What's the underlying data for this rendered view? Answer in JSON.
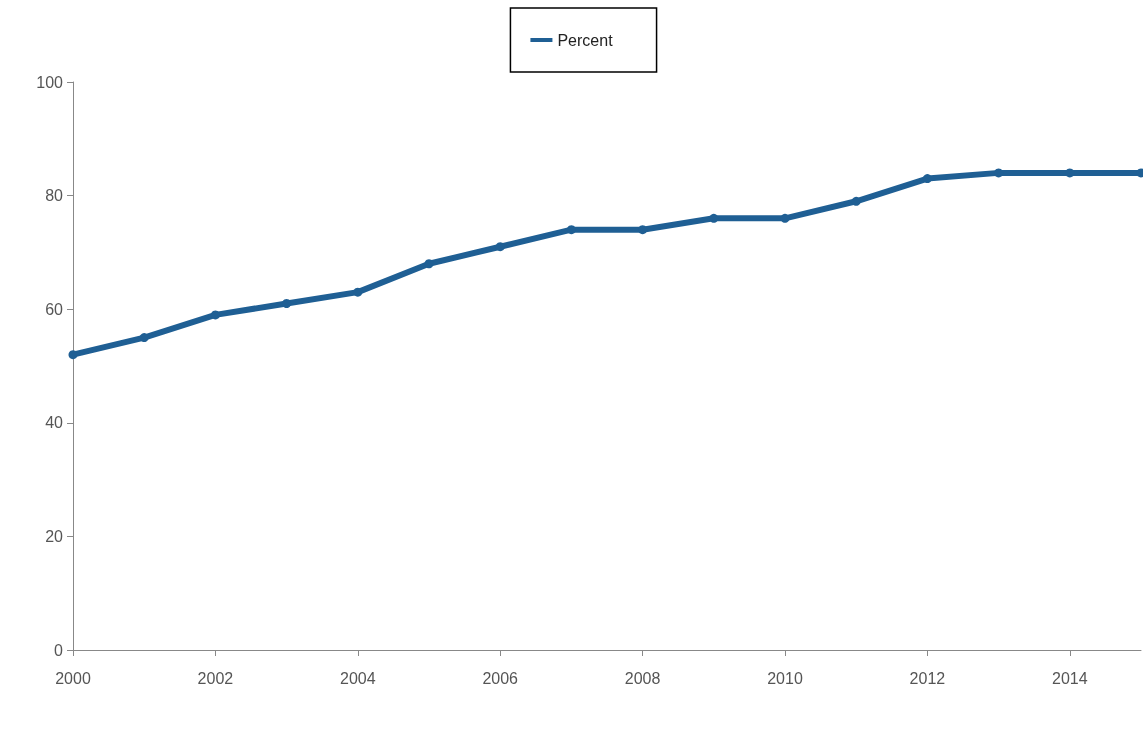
{
  "chart_data": {
    "type": "line",
    "x": [
      2000,
      2001,
      2002,
      2003,
      2004,
      2005,
      2006,
      2007,
      2008,
      2009,
      2010,
      2011,
      2012,
      2013,
      2014,
      2015
    ],
    "series": [
      {
        "name": "Percent",
        "color": "#1f5f94",
        "values": [
          52,
          55,
          59,
          61,
          63,
          68,
          71,
          74,
          74,
          76,
          76,
          79,
          83,
          84,
          84,
          84
        ]
      }
    ],
    "xlim": [
      2000,
      2015
    ],
    "xticks": [
      2000,
      2002,
      2004,
      2006,
      2008,
      2010,
      2012,
      2014
    ],
    "ylim": [
      0,
      100
    ],
    "yticks": [
      0,
      20,
      40,
      60,
      80,
      100
    ],
    "grid": false,
    "legend": "top",
    "marker": "circle",
    "line_style": "solid"
  }
}
